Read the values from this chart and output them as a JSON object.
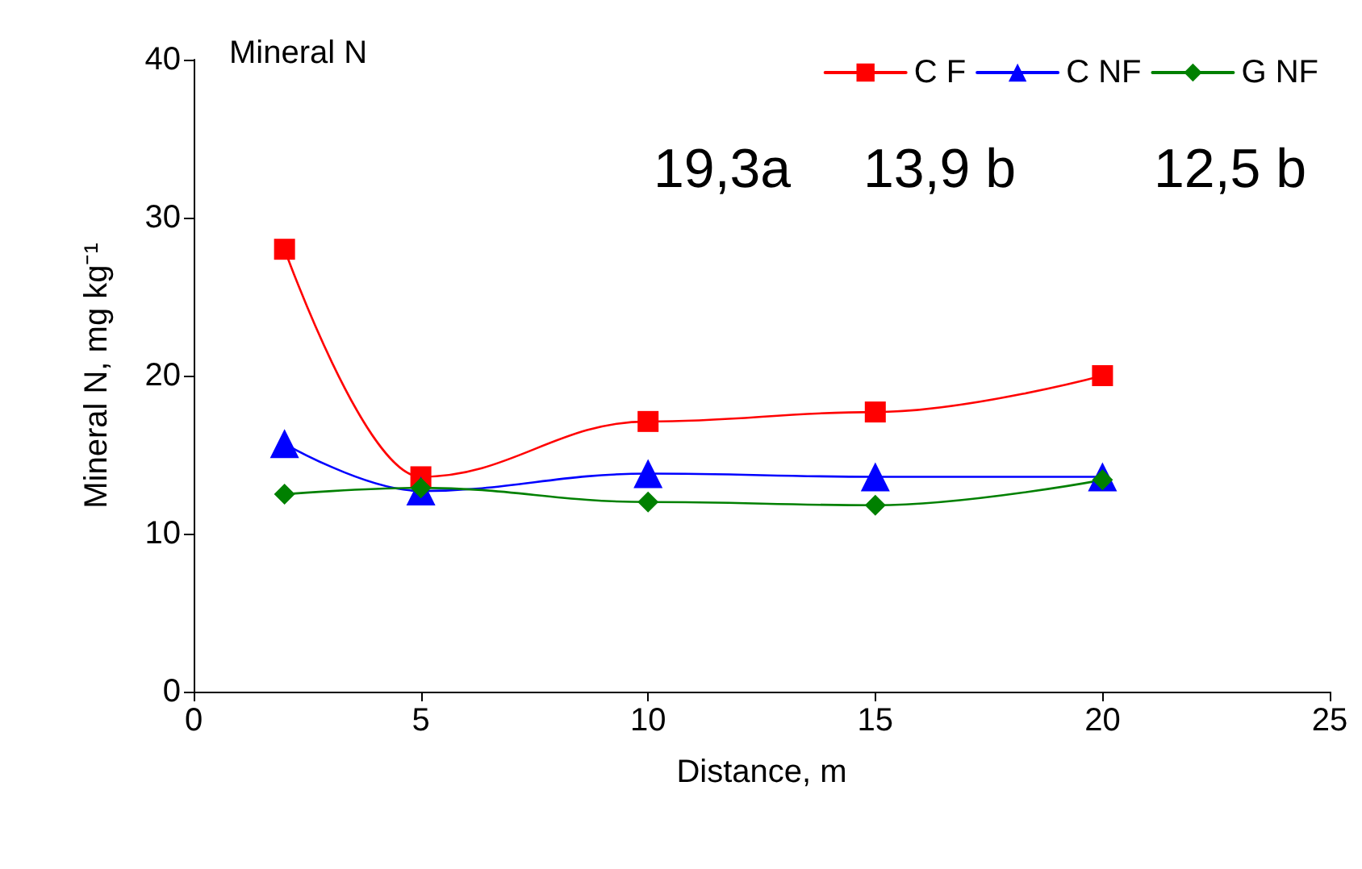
{
  "chart_data": {
    "type": "line",
    "title": "Mineral N",
    "xlabel": "Distance, m",
    "ylabel": "Mineral N, mg kg⁻¹",
    "annotations": [
      "19,3a",
      "13,9 b",
      "12,5 b"
    ],
    "x": [
      2,
      5,
      10,
      15,
      20
    ],
    "series": [
      {
        "name": "C F",
        "color": "#ff0000",
        "marker": "square",
        "values": [
          28,
          13.6,
          17.1,
          17.7,
          20
        ]
      },
      {
        "name": "C NF",
        "color": "#0000ff",
        "marker": "triangle",
        "values": [
          15.7,
          12.7,
          13.8,
          13.6,
          13.6
        ]
      },
      {
        "name": "G NF",
        "color": "#008000",
        "marker": "diamond",
        "values": [
          12.5,
          12.9,
          12,
          11.8,
          13.4
        ]
      }
    ],
    "xlim": [
      0,
      25
    ],
    "xticks": [
      0,
      5,
      10,
      15,
      20,
      25
    ],
    "ylim": [
      0,
      40
    ],
    "yticks": [
      0,
      10,
      20,
      30,
      40
    ],
    "grid": false,
    "legend": "top right",
    "line_style": "solid"
  }
}
